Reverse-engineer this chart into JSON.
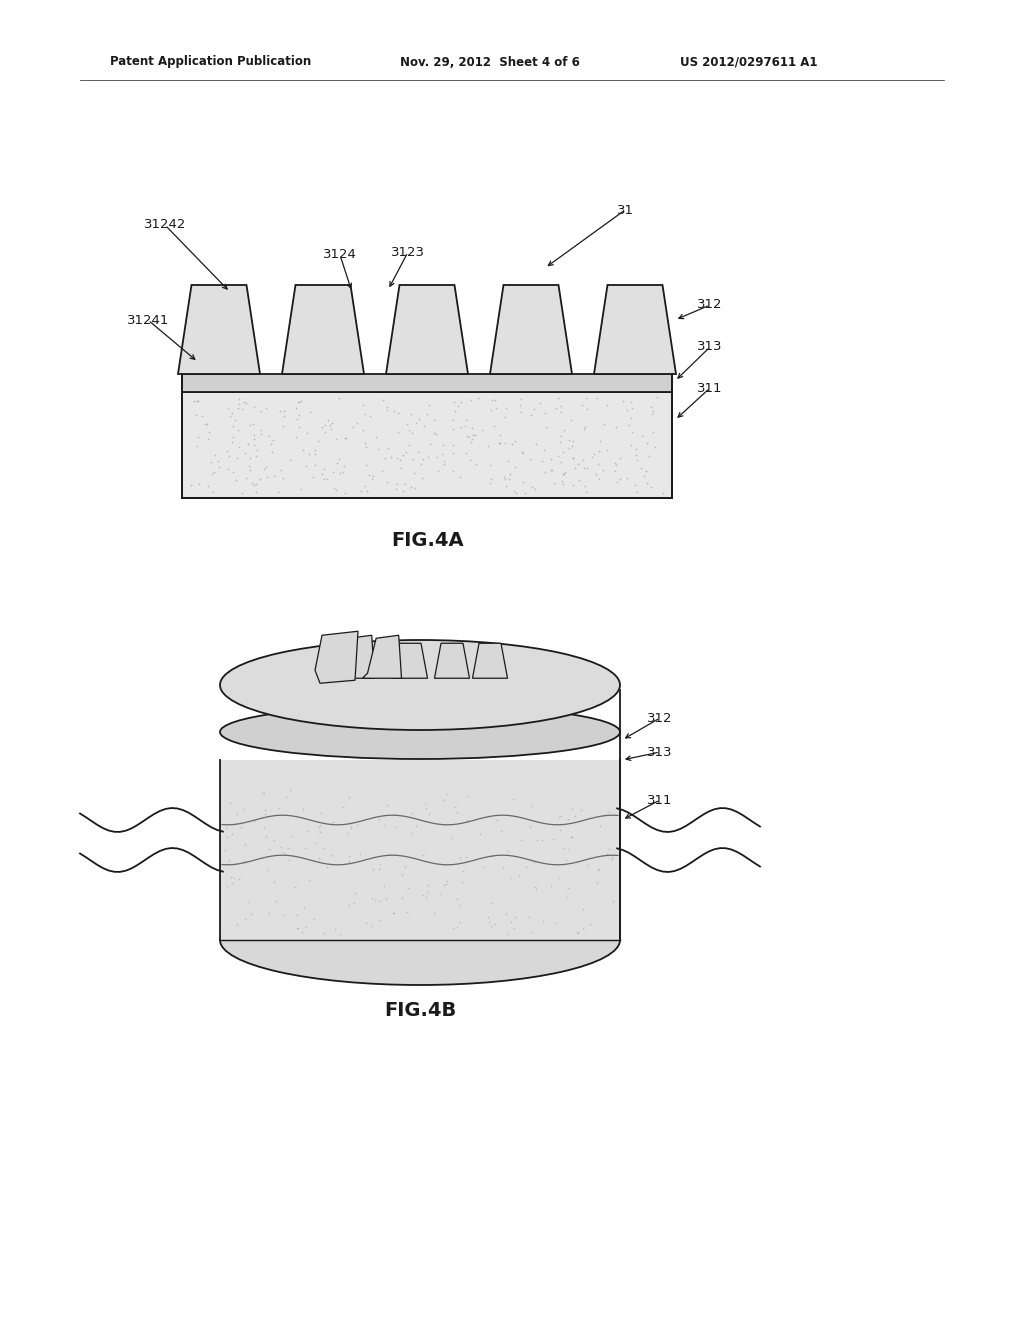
{
  "bg_color": "#ffffff",
  "line_color": "#1a1a1a",
  "header_left": "Patent Application Publication",
  "header_mid": "Nov. 29, 2012  Sheet 4 of 6",
  "header_right": "US 2012/0297611 A1",
  "fig4a_label": "FIG.4A",
  "fig4b_label": "FIG.4B",
  "lfs": 9.5
}
